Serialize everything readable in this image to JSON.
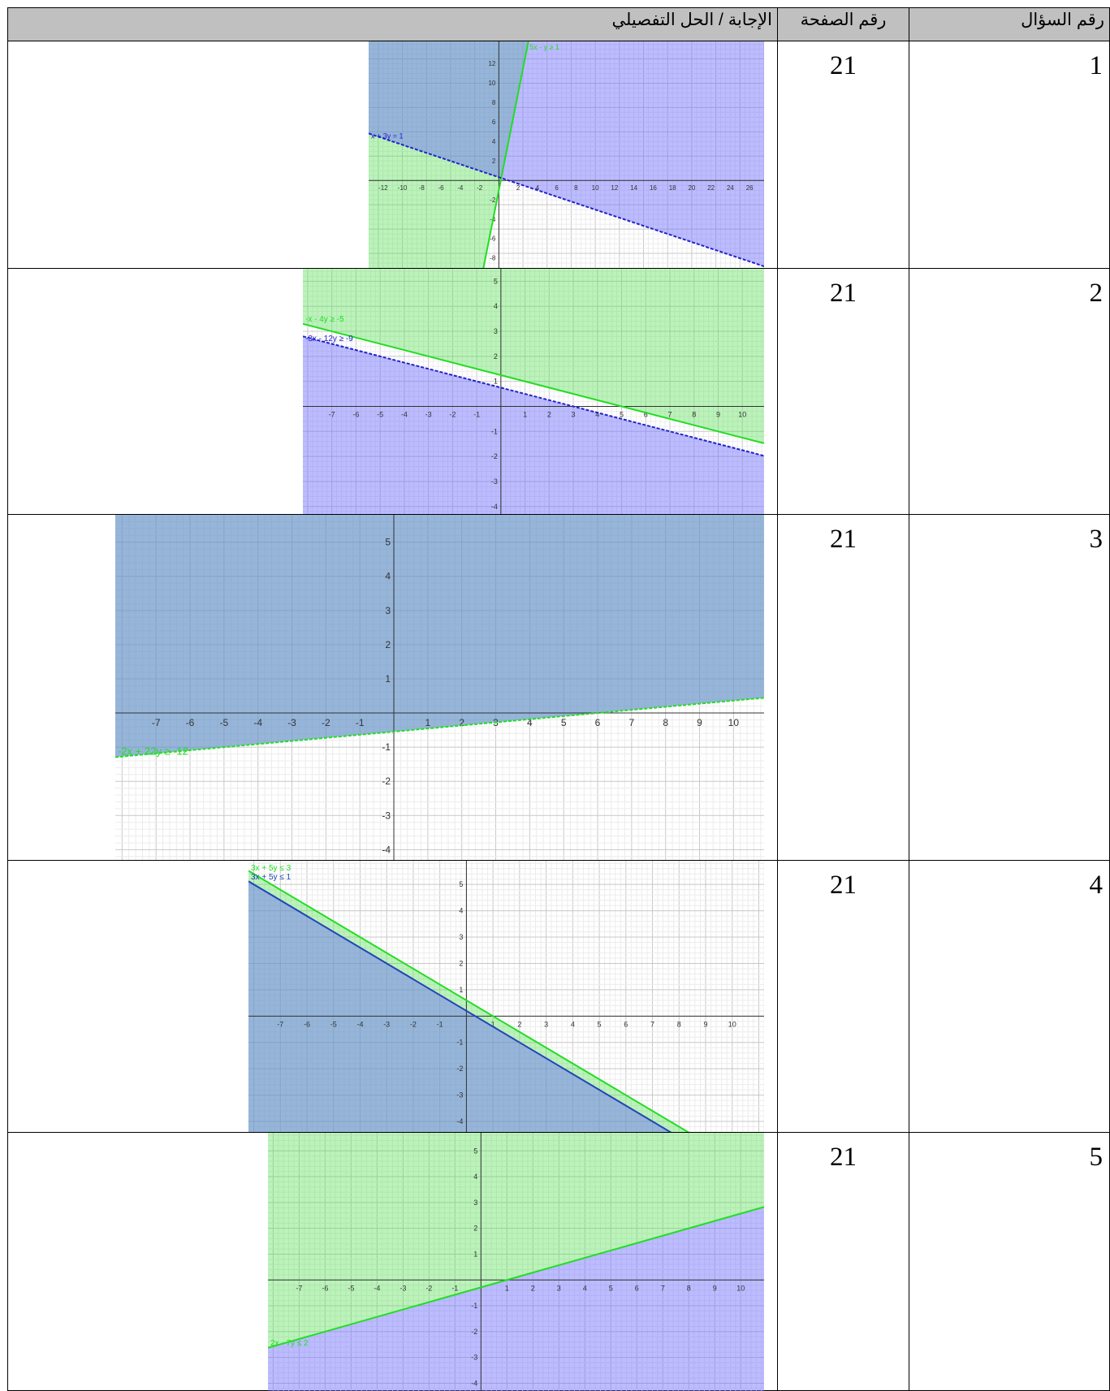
{
  "table": {
    "headers": [
      "رقم السؤال",
      "رقم الصفحة",
      "الإجابة / الحل التفصيلي"
    ],
    "rows": [
      {
        "question": "1",
        "page": "21",
        "graph": {
          "labels": [
            "5x - y ≥ 1",
            "x + 3y = 1"
          ],
          "xticks": [
            -12,
            -10,
            -8,
            -6,
            -4,
            -2,
            2,
            4,
            6,
            8,
            10,
            12,
            14,
            16,
            18,
            20,
            22,
            24,
            26
          ],
          "yticks": [
            -8,
            -6,
            -4,
            -2,
            2,
            4,
            6,
            8,
            10,
            12
          ]
        }
      },
      {
        "question": "2",
        "page": "21",
        "graph": {
          "labels": [
            "-x - 4y ≥ -5",
            "-3x - 12y ≥ -9"
          ],
          "xticks": [
            -7,
            -6,
            -5,
            -4,
            -3,
            -2,
            -1,
            1,
            2,
            3,
            4,
            5,
            6,
            7,
            8,
            9,
            10
          ],
          "yticks": [
            -4,
            -3,
            -2,
            -1,
            1,
            2,
            3,
            4,
            5
          ]
        }
      },
      {
        "question": "3",
        "page": "21",
        "graph": {
          "labels": [
            "-2x + 22y ≥ -12"
          ],
          "xticks": [
            -7,
            -6,
            -5,
            -4,
            -3,
            -2,
            -1,
            1,
            2,
            3,
            4,
            5,
            6,
            7,
            8,
            9,
            10
          ],
          "yticks": [
            -4,
            -3,
            -2,
            -1,
            1,
            2,
            3,
            4,
            5
          ]
        }
      },
      {
        "question": "4",
        "page": "21",
        "graph": {
          "labels": [
            "3x + 5y ≤ 3",
            "3x + 5y ≤ 1"
          ],
          "xticks": [
            -7,
            -6,
            -5,
            -4,
            -3,
            -2,
            -1,
            1,
            2,
            3,
            4,
            5,
            6,
            7,
            8,
            9,
            10
          ],
          "yticks": [
            -4,
            -3,
            -2,
            -1,
            1,
            2,
            3,
            4,
            5
          ]
        }
      },
      {
        "question": "5",
        "page": "21",
        "graph": {
          "labels": [
            "2x - 7y ≤ 2"
          ],
          "xticks": [
            -7,
            -6,
            -5,
            -4,
            -3,
            -2,
            -1,
            1,
            2,
            3,
            4,
            5,
            6,
            7,
            8,
            9,
            10
          ],
          "yticks": [
            -4,
            -3,
            -2,
            -1,
            1,
            2,
            3,
            4,
            5
          ]
        }
      }
    ]
  }
}
